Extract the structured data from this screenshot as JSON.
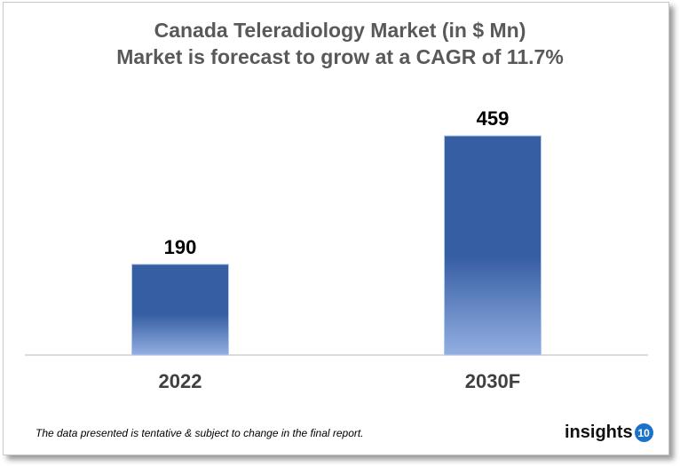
{
  "chart_data": {
    "type": "bar",
    "title": "Canada Teleradiology Market (in $ Mn)",
    "subtitle": "Market is forecast to grow at a CAGR of 11.7%",
    "categories": [
      "2022",
      "2030F"
    ],
    "values": [
      190,
      459
    ],
    "data_labels": [
      "190",
      "459"
    ],
    "ylim": [
      0,
      459
    ],
    "grid": false,
    "colors": {
      "bar_top": "#365ea3",
      "bar_bottom": "#93afe2"
    }
  },
  "footer": {
    "note": "The data presented is tentative & subject to change in the final report.",
    "logo_text": "insights",
    "logo_number": "10"
  }
}
